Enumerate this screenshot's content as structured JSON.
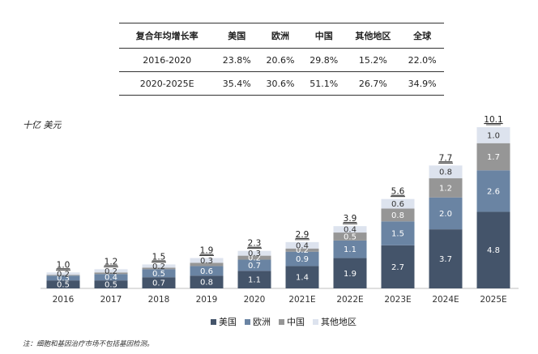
{
  "table": {
    "headers": [
      "复合年均增长率",
      "美国",
      "欧洲",
      "中国",
      "其他地区",
      "全球"
    ],
    "rows": [
      [
        "2016-2020",
        "23.8%",
        "20.6%",
        "29.8%",
        "15.2%",
        "22.0%"
      ],
      [
        "2020-2025E",
        "35.4%",
        "30.6%",
        "51.1%",
        "26.7%",
        "34.9%"
      ]
    ]
  },
  "unit_label": "十亿 美元",
  "footnote": "注：细胞和基因治疗市场不包括基因检测。",
  "chart_data": {
    "type": "bar",
    "stacked": true,
    "categories": [
      "2016",
      "2017",
      "2018",
      "2019",
      "2020",
      "2021E",
      "2022E",
      "2023E",
      "2024E",
      "2025E"
    ],
    "series": [
      {
        "name": "美国",
        "color": "#44546a",
        "values": [
          0.5,
          0.5,
          0.7,
          0.8,
          1.1,
          1.4,
          1.9,
          2.7,
          3.7,
          4.8
        ],
        "labels": [
          "0.5",
          "0.5",
          "0.7",
          "0.8",
          "1.1",
          "1.4",
          "1.9",
          "2.7",
          "3.7",
          "4.8"
        ]
      },
      {
        "name": "欧洲",
        "color": "#6a84a3",
        "values": [
          0.3,
          0.4,
          0.5,
          0.6,
          0.7,
          0.9,
          1.1,
          1.5,
          2.0,
          2.6
        ],
        "labels": [
          "0.3",
          "0.4",
          "0.5",
          "0.6",
          "0.7",
          "0.9",
          "1.1",
          "1.5",
          "2.0",
          "2.6"
        ]
      },
      {
        "name": "中国",
        "color": "#969696",
        "values": [
          0.05,
          0.1,
          0.1,
          0.2,
          0.25,
          0.2,
          0.5,
          0.8,
          1.2,
          1.7
        ],
        "labels": [
          "",
          "",
          "",
          "",
          "0.2",
          "0.2",
          "0.5",
          "0.8",
          "1.2",
          "1.7"
        ]
      },
      {
        "name": "其他地区",
        "color": "#dde3ee",
        "values": [
          0.15,
          0.2,
          0.2,
          0.3,
          0.3,
          0.4,
          0.4,
          0.6,
          0.8,
          1.0
        ],
        "labels": [
          "0.2",
          "0.2",
          "0.2",
          "0.3",
          "0.3",
          "0.4",
          "0.4",
          "0.6",
          "0.8",
          "1.0"
        ]
      }
    ],
    "totals": [
      "1.0",
      "1.2",
      "1.5",
      "1.9",
      "2.3",
      "2.9",
      "3.9",
      "5.6",
      "7.7",
      "10.1"
    ]
  }
}
